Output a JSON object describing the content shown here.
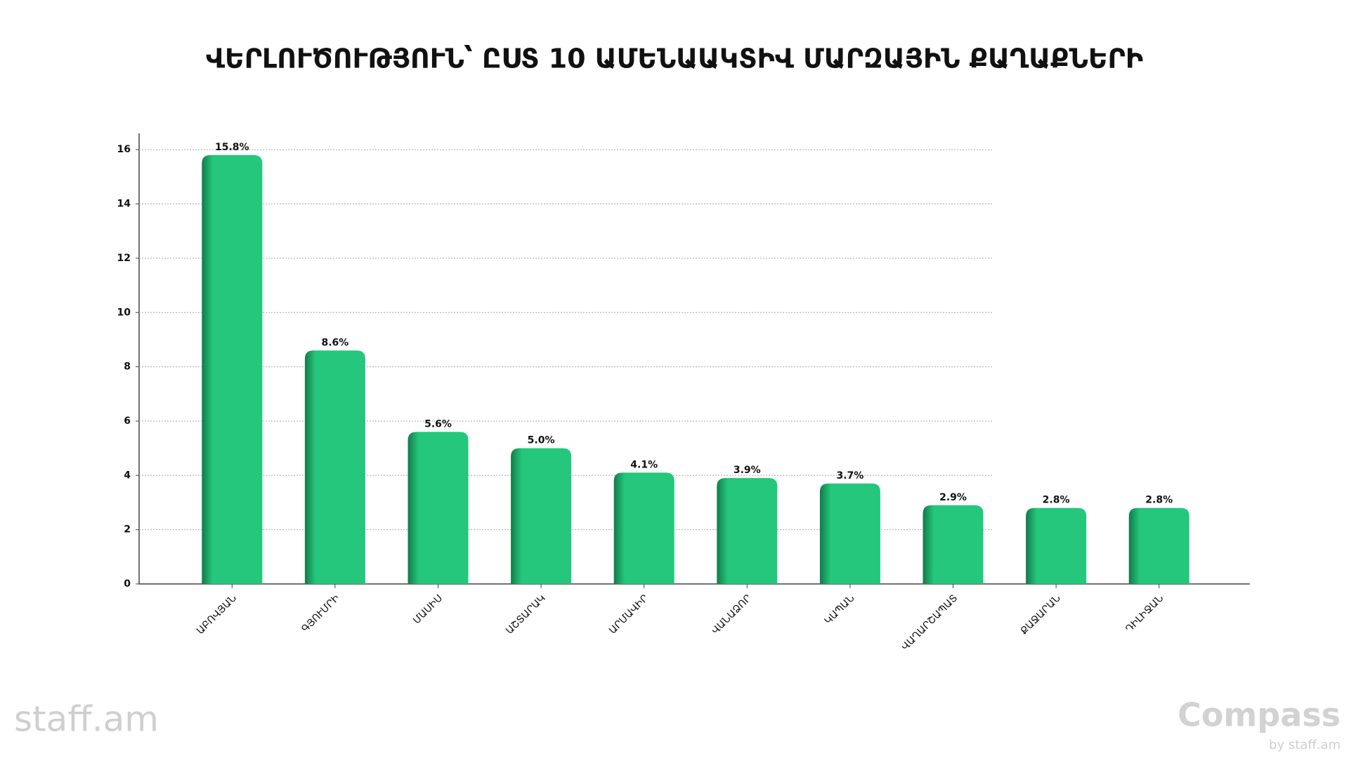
{
  "chart_data": {
    "type": "bar",
    "title": "ՎԵՐԼՈՒԾՈՒԹՅՈՒՆ՝ ԸՍՏ 10 ԱՄԵՆԱԱԿՏԻՎ ՄԱՐԶԱՅԻՆ ՔԱՂԱՔՆԵՐԻ",
    "categories": [
      "ԱԲՈՎՅԱՆ",
      "ԳՅՈՒՄՐԻ",
      "ՄԱՍԻՍ",
      "ԱՇՏԱՐԱԿ",
      "ԱՐՄԱՎԻՐ",
      "ՎԱՆԱՁՈՐ",
      "ԿԱՊԱՆ",
      "ՎԱՂԱՐՇԱՊԱՏ",
      "ՔԱՋԱՐԱՆ",
      "ԴԻԼԻՋԱՆ"
    ],
    "values": [
      15.8,
      8.6,
      5.6,
      5.0,
      4.1,
      3.9,
      3.7,
      2.9,
      2.8,
      2.8
    ],
    "value_labels": [
      "15.8%",
      "8.6%",
      "5.6%",
      "5.0%",
      "4.1%",
      "3.9%",
      "3.7%",
      "2.9%",
      "2.8%",
      "2.8%"
    ],
    "color": "#24c77c",
    "ylim": [
      0,
      16.6
    ],
    "yticks": [
      0,
      2,
      4,
      6,
      8,
      10,
      12,
      14,
      16
    ],
    "grid": true
  },
  "footer": {
    "left_logo": "staff.am",
    "right_logo": "Compass",
    "right_sub": "by staff.am"
  }
}
